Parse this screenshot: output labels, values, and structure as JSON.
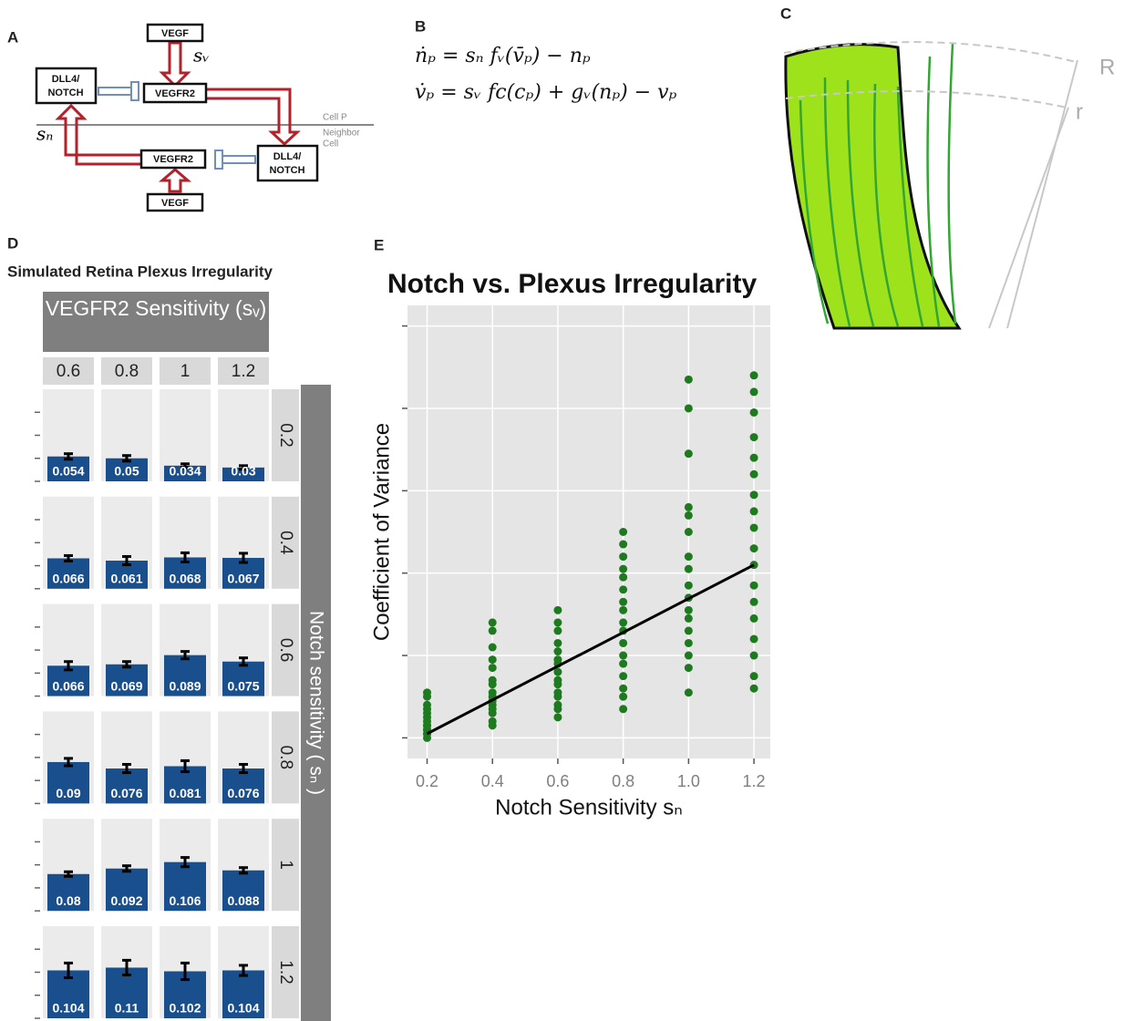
{
  "panel_labels": {
    "a": "A",
    "b": "B",
    "c": "C",
    "d": "D",
    "e": "E"
  },
  "diagram": {
    "vegf_top": "VEGF",
    "vegf_bottom": "VEGF",
    "vegfr2_top": "VEGFR2",
    "vegfr2_bottom": "VEGFR2",
    "notch_left": [
      "DLL4/",
      "NOTCH"
    ],
    "notch_right": [
      "DLL4/",
      "NOTCH"
    ],
    "s_v": "sᵥ",
    "s_n": "sₙ",
    "cell_p": "Cell P",
    "neighbor_cell": [
      "Neighbor",
      "Cell"
    ]
  },
  "equations": [
    "ṅₚ = sₙ fᵥ(v̄ₚ) − nₚ",
    "v̇ₚ = sᵥ fc(cₚ) + gᵥ(nₚ) − vₚ"
  ],
  "schematic": {
    "outer_radius": "R",
    "inner_radius": "r"
  },
  "chart_data": [
    {
      "type": "facet_bar",
      "title": "Simulated Retina Plexus Irregularity",
      "column_title": "VEGFR2 Sensitivity (sᵥ)",
      "row_title": "Notch sensitivity ( sₙ )",
      "categories": [
        "0.6",
        "0.8",
        "1",
        "1.2"
      ],
      "color": "#1a4f8e",
      "ylim": [
        0,
        0.2
      ],
      "yticks": [
        0,
        0.05,
        0.1,
        0.15
      ],
      "series": [
        {
          "name": "0.2",
          "values": [
            0.054,
            0.05,
            0.034,
            0.03
          ],
          "errors": [
            0.006,
            0.006,
            0.004,
            0.004
          ]
        },
        {
          "name": "0.4",
          "values": [
            0.066,
            0.061,
            0.068,
            0.067
          ],
          "errors": [
            0.006,
            0.009,
            0.01,
            0.01
          ]
        },
        {
          "name": "0.6",
          "values": [
            0.066,
            0.069,
            0.089,
            0.075
          ],
          "errors": [
            0.009,
            0.006,
            0.008,
            0.008
          ]
        },
        {
          "name": "0.8",
          "values": [
            0.09,
            0.076,
            0.081,
            0.076
          ],
          "errors": [
            0.008,
            0.009,
            0.012,
            0.009
          ]
        },
        {
          "name": "1",
          "values": [
            0.08,
            0.092,
            0.106,
            0.088
          ],
          "errors": [
            0.005,
            0.006,
            0.01,
            0.006
          ]
        },
        {
          "name": "1.2",
          "values": [
            0.104,
            0.11,
            0.102,
            0.104
          ],
          "errors": [
            0.016,
            0.016,
            0.018,
            0.011
          ]
        }
      ]
    },
    {
      "type": "scatter",
      "title": "Notch vs. Plexus Irregularity",
      "xlabel": "Notch Sensitivity sₙ",
      "ylabel": "Coefficient of Variance",
      "color": "#1e7a1e",
      "grid": true,
      "xlim": [
        0.14,
        1.25
      ],
      "ylim": [
        0.015,
        0.125
      ],
      "xticks": [
        0.2,
        0.4,
        0.6,
        0.8,
        {
          "value": 1,
          "label": "1.0"
        },
        1.2
      ],
      "yticks": [
        0.02,
        0.04,
        0.06,
        0.08,
        0.1,
        0.12
      ],
      "x": [
        0.2,
        0.2,
        0.2,
        0.2,
        0.2,
        0.2,
        0.2,
        0.2,
        0.2,
        0.2,
        0.2,
        0.2,
        0.2,
        0.2,
        0.4,
        0.4,
        0.4,
        0.4,
        0.4,
        0.4,
        0.4,
        0.4,
        0.4,
        0.4,
        0.4,
        0.4,
        0.4,
        0.4,
        0.4,
        0.6,
        0.6,
        0.6,
        0.6,
        0.6,
        0.6,
        0.6,
        0.6,
        0.6,
        0.6,
        0.6,
        0.6,
        0.6,
        0.6,
        0.6,
        0.8,
        0.8,
        0.8,
        0.8,
        0.8,
        0.8,
        0.8,
        0.8,
        0.8,
        0.8,
        0.8,
        0.8,
        0.8,
        0.8,
        0.8,
        0.8,
        0.8,
        1,
        1,
        1,
        1,
        1,
        1,
        1,
        1,
        1,
        1,
        1,
        1,
        1,
        1,
        1,
        1,
        1,
        1.2,
        1.2,
        1.2,
        1.2,
        1.2,
        1.2,
        1.2,
        1.2,
        1.2,
        1.2,
        1.2,
        1.2,
        1.2,
        1.2,
        1.2,
        1.2,
        1.2,
        1.2
      ],
      "values": [
        0.031,
        0.03,
        0.028,
        0.027,
        0.026,
        0.025,
        0.024,
        0.023,
        0.023,
        0.022,
        0.022,
        0.021,
        0.021,
        0.02,
        0.048,
        0.046,
        0.042,
        0.039,
        0.037,
        0.034,
        0.033,
        0.031,
        0.03,
        0.029,
        0.028,
        0.027,
        0.026,
        0.024,
        0.023,
        0.051,
        0.048,
        0.046,
        0.043,
        0.041,
        0.039,
        0.038,
        0.036,
        0.034,
        0.033,
        0.031,
        0.03,
        0.028,
        0.027,
        0.025,
        0.07,
        0.067,
        0.064,
        0.061,
        0.059,
        0.056,
        0.053,
        0.051,
        0.048,
        0.046,
        0.043,
        0.04,
        0.038,
        0.035,
        0.032,
        0.03,
        0.027,
        0.107,
        0.1,
        0.089,
        0.076,
        0.074,
        0.07,
        0.064,
        0.061,
        0.057,
        0.054,
        0.051,
        0.049,
        0.046,
        0.043,
        0.04,
        0.037,
        0.031,
        0.108,
        0.104,
        0.099,
        0.093,
        0.088,
        0.084,
        0.079,
        0.075,
        0.071,
        0.066,
        0.062,
        0.057,
        0.053,
        0.049,
        0.044,
        0.04,
        0.035,
        0.032
      ],
      "fit": {
        "x": [
          0.2,
          1.2
        ],
        "values": [
          0.021,
          0.062
        ],
        "color": "#000000"
      }
    }
  ]
}
